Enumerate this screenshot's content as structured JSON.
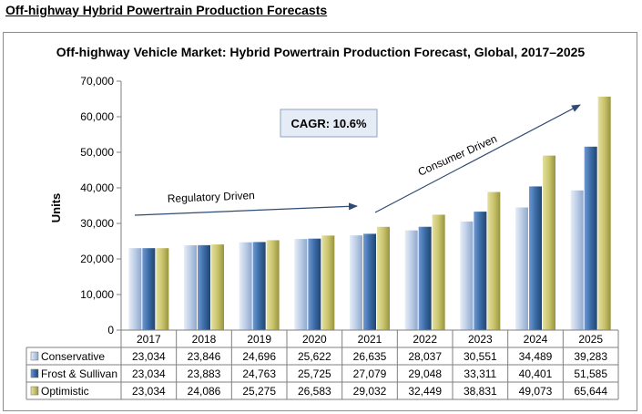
{
  "page": {
    "heading": "Off-highway Hybrid Powertrain Production Forecasts"
  },
  "chart_data": {
    "type": "bar",
    "title": "Off-highway Vehicle Market: Hybrid Powertrain Production Forecast, Global, 2017–2025",
    "xlabel": "",
    "ylabel": "Units",
    "ylim": [
      0,
      70000
    ],
    "yticks": [
      0,
      10000,
      20000,
      30000,
      40000,
      50000,
      60000,
      70000
    ],
    "ytick_labels": [
      "0",
      "10,000",
      "20,000",
      "30,000",
      "40,000",
      "50,000",
      "60,000",
      "70,000"
    ],
    "grid": false,
    "legend": "data table below chart",
    "categories": [
      "2017",
      "2018",
      "2019",
      "2020",
      "2021",
      "2022",
      "2023",
      "2024",
      "2025"
    ],
    "series": [
      {
        "name": "Conservative",
        "color": "#bccde6",
        "values": [
          23034,
          23846,
          24696,
          25622,
          26635,
          28037,
          30551,
          34489,
          39283
        ],
        "labels": [
          "23,034",
          "23,846",
          "24,696",
          "25,622",
          "26,635",
          "28,037",
          "30,551",
          "34,489",
          "39,283"
        ]
      },
      {
        "name": "Frost & Sullivan",
        "color": "#3b6ca8",
        "values": [
          23034,
          23883,
          24763,
          25725,
          27079,
          29048,
          33311,
          40401,
          51585
        ],
        "labels": [
          "23,034",
          "23,883",
          "24,763",
          "25,725",
          "27,079",
          "29,048",
          "33,311",
          "40,401",
          "51,585"
        ]
      },
      {
        "name": "Optimistic",
        "color": "#c9c46c",
        "values": [
          23034,
          24086,
          25275,
          26583,
          29032,
          32449,
          38831,
          49073,
          65644
        ],
        "labels": [
          "23,034",
          "24,086",
          "25,275",
          "26,583",
          "29,032",
          "32,449",
          "38,831",
          "49,073",
          "65,644"
        ]
      }
    ],
    "annotations": {
      "cagr": "CAGR: 10.6%",
      "regulatory": "Regulatory Driven",
      "consumer": "Consumer Driven"
    }
  }
}
